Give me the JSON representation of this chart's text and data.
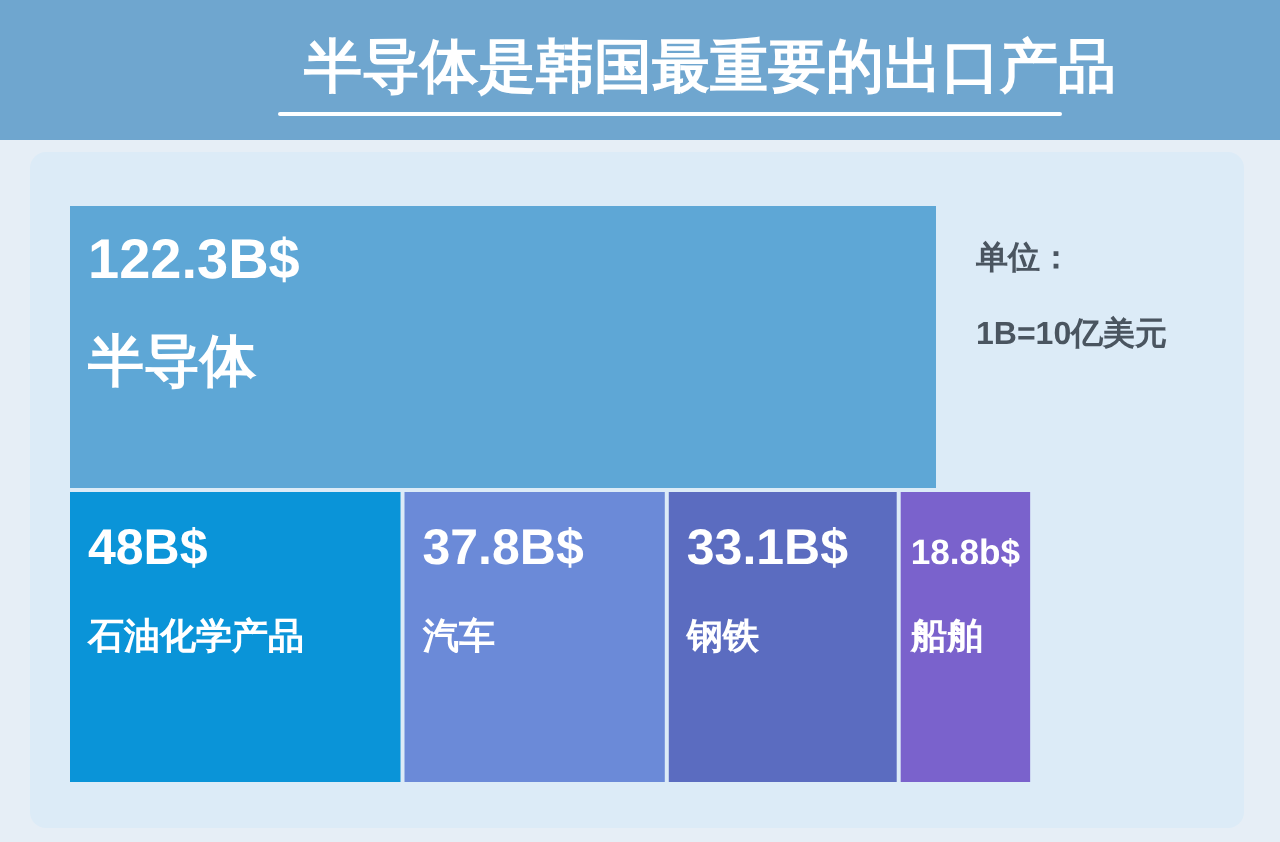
{
  "chart_data": {
    "type": "other",
    "title": "半导体是韩国最重要的出口产品",
    "categories": [
      "半导体",
      "石油化学产品",
      "汽车",
      "钢铁",
      "船舶"
    ],
    "values": [
      122.3,
      48,
      37.8,
      33.1,
      18.8
    ],
    "value_labels": [
      "122.3B$",
      "48B$",
      "37.8B$",
      "33.1B$",
      "18.8b$"
    ],
    "colors": [
      "#5ea7d6",
      "#0a94d8",
      "#6b8ad8",
      "#5b6cc0",
      "#7a62cc"
    ],
    "annotations": [
      "单位：",
      "1B=10亿美元"
    ]
  }
}
